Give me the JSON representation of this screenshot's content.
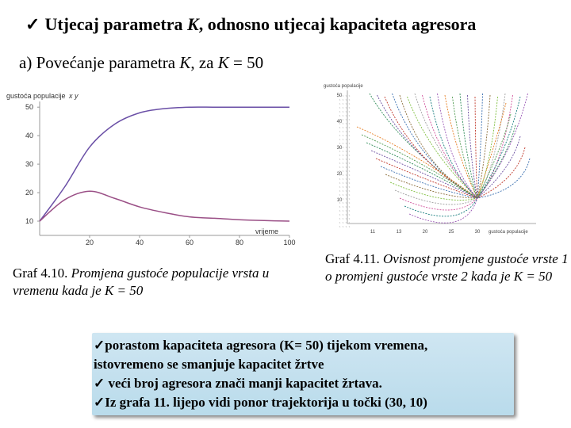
{
  "title": {
    "check": "✓",
    "text_before": "Utjecaj parametra ",
    "var": "K",
    "text_after": ", odnosno utjecaj kapaciteta agresora"
  },
  "subtitle": {
    "prefix": "a) Povećanje parametra ",
    "var1": "K",
    "middle": ", za ",
    "var2": "K",
    "suffix": " = 50"
  },
  "graph1": {
    "axis_title_left": "gustoća",
    "axis_title_mid": "populacije",
    "axis_title_vars": "x y",
    "xlabel": "vrijeme",
    "x_ticks": [
      "20",
      "40",
      "60",
      "80",
      "100"
    ],
    "y_ticks": [
      "10",
      "20",
      "30",
      "40",
      "50"
    ],
    "caption_prefix": "Graf 4.10. ",
    "caption_italic": "Promjena gustoće populacije vrsta u vremenu kada je K = 50"
  },
  "graph2": {
    "axis_title": "gustoća populacije",
    "xlabel": "gustoća populacije",
    "x_ticks": [
      "11",
      "13",
      "20",
      "25",
      "30"
    ],
    "y_ticks": [
      "50",
      "40",
      "30",
      "20",
      "10"
    ],
    "caption_prefix": "Graf 4.11. ",
    "caption_italic": "Ovisnost promjene gustoće vrste 1 o promjeni gustoće vrste 2 kada je K = 50"
  },
  "chart_data": [
    {
      "type": "line",
      "x": [
        0,
        10,
        20,
        30,
        40,
        50,
        60,
        70,
        80,
        90,
        100
      ],
      "series": [
        {
          "values": [
            10,
            22,
            36,
            44,
            48,
            49.5,
            50,
            50,
            50,
            50,
            50
          ],
          "color": "#6a4fa6"
        },
        {
          "values": [
            10,
            17.5,
            20.5,
            18,
            15,
            13,
            11.5,
            11,
            10.5,
            10.2,
            10
          ],
          "color": "#9a4f86"
        }
      ],
      "xlim": [
        0,
        100
      ],
      "ylim": [
        5,
        52
      ],
      "xlabel": "vrijeme"
    }
  ],
  "note": {
    "line1": "✓porastom kapaciteta agresora (K= 50) tijekom vremena,",
    "line2": "istovremeno se smanjuje kapacitet žrtve",
    "line3": "✓ veći broj agresora znači manji kapacitet žrtava.",
    "line4": "✓Iz grafa 11. lijepo vidi ponor trajektorija u točki (30, 10)"
  },
  "colors": {
    "curve1": "#6a4fa6",
    "curve2": "#9a4f86",
    "note_bg": "#c6e2ef"
  }
}
